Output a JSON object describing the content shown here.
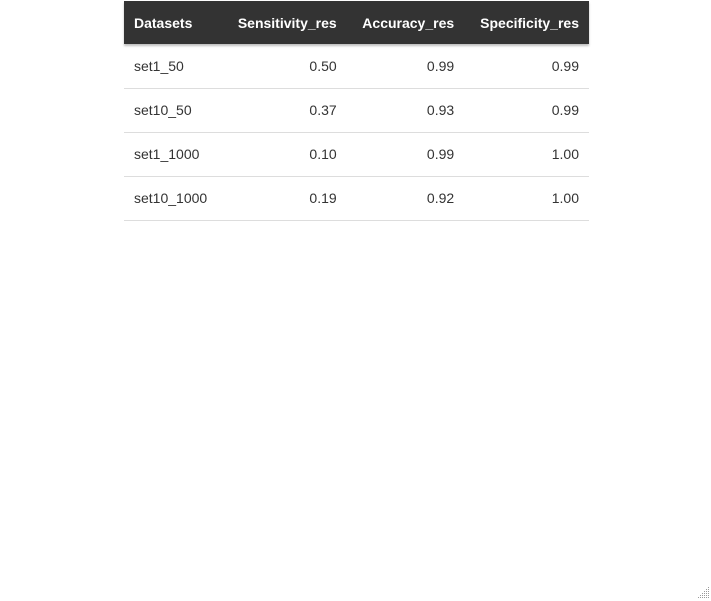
{
  "table": {
    "headers": [
      "Datasets",
      "Sensitivity_res",
      "Accuracy_res",
      "Specificity_res"
    ],
    "rows": [
      {
        "dataset": "set1_50",
        "sensitivity": "0.50",
        "accuracy": "0.99",
        "specificity": "0.99"
      },
      {
        "dataset": "set10_50",
        "sensitivity": "0.37",
        "accuracy": "0.93",
        "specificity": "0.99"
      },
      {
        "dataset": "set1_1000",
        "sensitivity": "0.10",
        "accuracy": "0.99",
        "specificity": "1.00"
      },
      {
        "dataset": "set10_1000",
        "sensitivity": "0.19",
        "accuracy": "0.92",
        "specificity": "1.00"
      }
    ]
  },
  "colors": {
    "header_bg": "#333333",
    "header_text": "#ffffff",
    "row_border": "#dddddd",
    "body_text": "#333333"
  },
  "icons": {
    "resize": "resize-grip-icon"
  }
}
